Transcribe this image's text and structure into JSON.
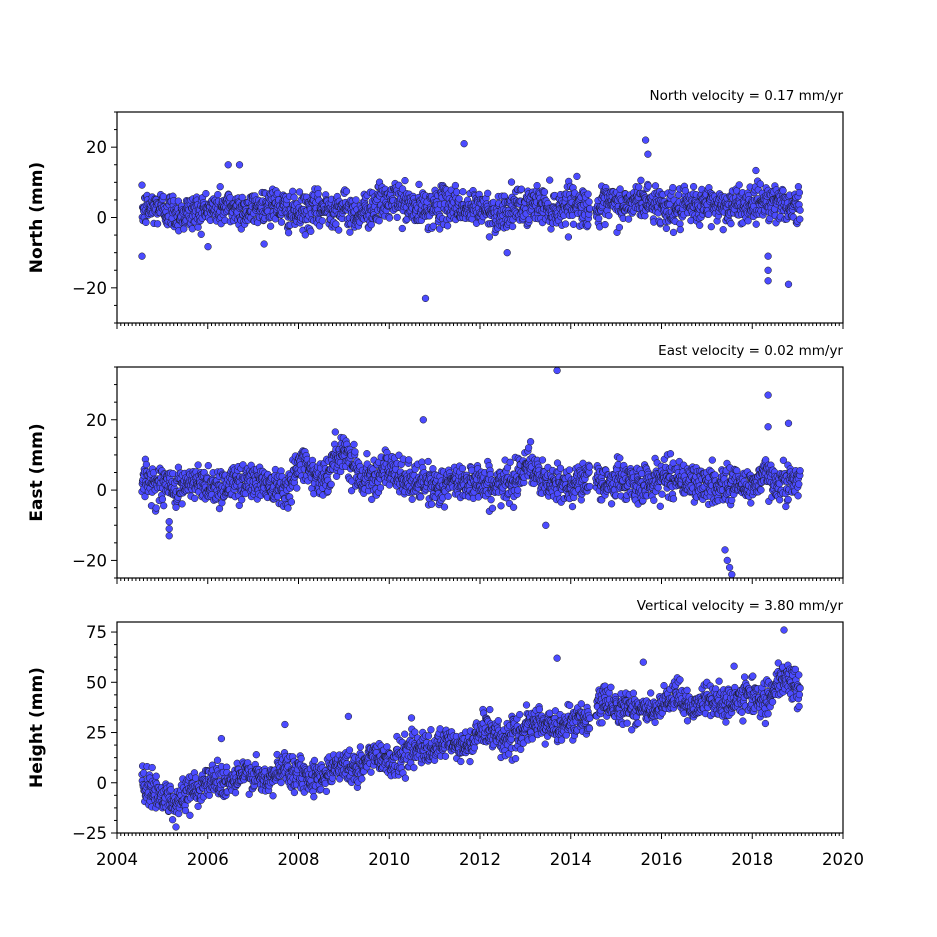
{
  "chart_data": [
    {
      "type": "scatter",
      "title": "North velocity = 0.17 mm/yr",
      "ylabel": "North (mm)",
      "xlabel": "",
      "xlim": [
        2004,
        2020
      ],
      "ylim": [
        -30,
        30
      ],
      "yticks": [
        -20,
        0,
        20
      ],
      "xticks": [
        2004,
        2006,
        2008,
        2010,
        2012,
        2014,
        2016,
        2018,
        2020
      ],
      "show_xtick_labels": false,
      "marker_color": "#4b4bff",
      "marker_edge": "#1a1a1a",
      "x": [
        2004.55,
        2004.9,
        2005.4,
        2005.9,
        2006.4,
        2006.9,
        2007.4,
        2007.9,
        2008.4,
        2008.9,
        2009.3,
        2009.8,
        2010.2,
        2010.6,
        2011.0,
        2011.4,
        2011.7,
        2012.0,
        2012.3,
        2012.6,
        2013.0,
        2013.3,
        2013.7,
        2014.0,
        2014.3,
        2014.6,
        2014.9,
        2015.2,
        2015.5,
        2015.9,
        2016.3,
        2016.7,
        2017.1,
        2017.5,
        2017.9,
        2018.3,
        2018.7,
        2019.0
      ],
      "y": [
        2,
        3,
        1,
        2,
        3,
        2,
        4,
        1,
        2,
        3,
        1,
        4,
        5,
        2,
        3,
        4,
        2,
        3,
        1,
        2,
        3,
        4,
        2,
        5,
        3,
        2,
        4,
        3,
        5,
        4,
        2,
        3,
        4,
        3,
        4,
        5,
        4,
        3
      ],
      "outliers": {
        "x": [
          2004.55,
          2006.45,
          2006.7,
          2010.8,
          2011.65,
          2012.6,
          2015.65,
          2015.7,
          2018.35,
          2018.35,
          2018.35,
          2018.8
        ],
        "y": [
          -11,
          15,
          15,
          -23,
          21,
          -10,
          22,
          18,
          -11,
          -15,
          -18,
          -19
        ]
      }
    },
    {
      "type": "scatter",
      "title": "East velocity = 0.02 mm/yr",
      "ylabel": "East (mm)",
      "xlabel": "",
      "xlim": [
        2004,
        2020
      ],
      "ylim": [
        -25,
        35
      ],
      "yticks": [
        -20,
        0,
        20
      ],
      "xticks": [
        2004,
        2006,
        2008,
        2010,
        2012,
        2014,
        2016,
        2018,
        2020
      ],
      "show_xtick_labels": false,
      "marker_color": "#4b4bff",
      "marker_edge": "#1a1a1a",
      "x": [
        2004.55,
        2004.9,
        2005.3,
        2005.8,
        2006.3,
        2006.8,
        2007.3,
        2007.8,
        2008.1,
        2008.5,
        2009.0,
        2009.4,
        2009.9,
        2010.3,
        2010.7,
        2011.1,
        2011.5,
        2011.9,
        2012.3,
        2012.7,
        2013.0,
        2013.4,
        2013.8,
        2014.2,
        2014.7,
        2015.1,
        2015.5,
        2015.9,
        2016.3,
        2016.7,
        2017.1,
        2017.5,
        2017.9,
        2018.3,
        2018.7,
        2019.0
      ],
      "y": [
        3,
        2,
        1,
        2,
        1,
        3,
        2,
        1,
        9,
        2,
        12,
        3,
        6,
        3,
        2,
        1,
        2,
        3,
        1,
        2,
        8,
        2,
        1,
        3,
        2,
        3,
        1,
        3,
        4,
        2,
        1,
        2,
        1,
        4,
        2,
        3
      ],
      "outliers": {
        "x": [
          2005.15,
          2005.15,
          2005.15,
          2010.75,
          2013.45,
          2013.7,
          2017.4,
          2017.45,
          2017.5,
          2017.55,
          2018.35,
          2018.35,
          2018.8
        ],
        "y": [
          -11,
          -9,
          -13,
          20,
          -10,
          34,
          -17,
          -20,
          -22,
          -24,
          27,
          18,
          19
        ]
      }
    },
    {
      "type": "scatter",
      "title": "Vertical velocity = 3.80 mm/yr",
      "ylabel": "Height (mm)",
      "xlabel": "",
      "xlim": [
        2004,
        2020
      ],
      "ylim": [
        -25,
        80
      ],
      "yticks": [
        -25,
        0,
        25,
        50,
        75
      ],
      "xticks": [
        2004,
        2006,
        2008,
        2010,
        2012,
        2014,
        2016,
        2018,
        2020
      ],
      "show_xtick_labels": true,
      "marker_color": "#4b4bff",
      "marker_edge": "#1a1a1a",
      "x": [
        2004.55,
        2004.9,
        2005.3,
        2005.7,
        2006.1,
        2006.5,
        2006.9,
        2007.3,
        2007.7,
        2008.1,
        2008.5,
        2008.9,
        2009.3,
        2009.7,
        2010.1,
        2010.5,
        2010.9,
        2011.3,
        2011.7,
        2012.1,
        2012.5,
        2012.9,
        2013.3,
        2013.7,
        2014.1,
        2014.4,
        2014.7,
        2015.1,
        2015.5,
        2015.9,
        2016.3,
        2016.7,
        2017.1,
        2017.5,
        2017.9,
        2018.3,
        2018.7,
        2019.0
      ],
      "y": [
        -2,
        -5,
        -10,
        -3,
        2,
        0,
        5,
        0,
        8,
        4,
        3,
        10,
        6,
        15,
        10,
        18,
        15,
        20,
        17,
        28,
        22,
        25,
        30,
        27,
        32,
        30,
        40,
        38,
        37,
        35,
        43,
        38,
        42,
        38,
        45,
        40,
        52,
        48
      ],
      "outliers": {
        "x": [
          2005.3,
          2006.3,
          2007.7,
          2009.1,
          2013.7,
          2015.6,
          2017.6,
          2018.7
        ],
        "y": [
          -22,
          22,
          29,
          33,
          62,
          60,
          58,
          76
        ]
      }
    }
  ]
}
